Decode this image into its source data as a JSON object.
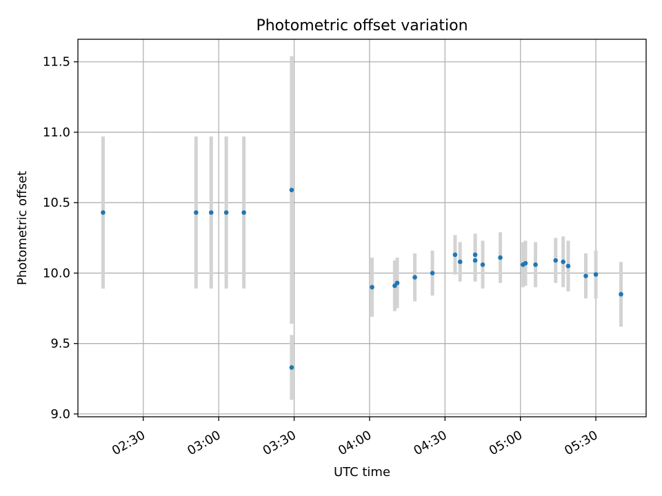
{
  "chart_data": {
    "type": "scatter",
    "title": "Photometric offset variation",
    "xlabel": "UTC time",
    "ylabel": "Photometric offset",
    "x_unit": "minutes_of_day",
    "xlim": [
      "02:04",
      "05:50"
    ],
    "ylim": [
      8.98,
      11.66
    ],
    "x_ticks": [
      "02:30",
      "03:00",
      "03:30",
      "04:00",
      "04:30",
      "05:00",
      "05:30"
    ],
    "y_ticks": [
      "9.0",
      "9.5",
      "10.0",
      "10.5",
      "11.0",
      "11.5"
    ],
    "grid": true,
    "marker_color": "#1f77b4",
    "errorbar_color": "#d3d3d3",
    "points": [
      {
        "time": "02:14",
        "y": 10.43,
        "err": 0.54
      },
      {
        "time": "02:51",
        "y": 10.43,
        "err": 0.54
      },
      {
        "time": "02:57",
        "y": 10.43,
        "err": 0.54
      },
      {
        "time": "03:03",
        "y": 10.43,
        "err": 0.54
      },
      {
        "time": "03:10",
        "y": 10.43,
        "err": 0.54
      },
      {
        "time": "03:29",
        "y": 10.59,
        "err": 0.95
      },
      {
        "time": "03:29",
        "y": 9.33,
        "err": 0.23
      },
      {
        "time": "04:01",
        "y": 9.9,
        "err": 0.21
      },
      {
        "time": "04:10",
        "y": 9.91,
        "err": 0.18
      },
      {
        "time": "04:11",
        "y": 9.93,
        "err": 0.18
      },
      {
        "time": "04:18",
        "y": 9.97,
        "err": 0.17
      },
      {
        "time": "04:25",
        "y": 10.0,
        "err": 0.16
      },
      {
        "time": "04:34",
        "y": 10.13,
        "err": 0.14
      },
      {
        "time": "04:36",
        "y": 10.08,
        "err": 0.14
      },
      {
        "time": "04:42",
        "y": 10.13,
        "err": 0.15
      },
      {
        "time": "04:42",
        "y": 10.09,
        "err": 0.15
      },
      {
        "time": "04:45",
        "y": 10.06,
        "err": 0.17
      },
      {
        "time": "04:52",
        "y": 10.11,
        "err": 0.18
      },
      {
        "time": "05:01",
        "y": 10.06,
        "err": 0.16
      },
      {
        "time": "05:02",
        "y": 10.07,
        "err": 0.16
      },
      {
        "time": "05:06",
        "y": 10.06,
        "err": 0.16
      },
      {
        "time": "05:14",
        "y": 10.09,
        "err": 0.16
      },
      {
        "time": "05:17",
        "y": 10.08,
        "err": 0.18
      },
      {
        "time": "05:19",
        "y": 10.05,
        "err": 0.18
      },
      {
        "time": "05:26",
        "y": 9.98,
        "err": 0.16
      },
      {
        "time": "05:30",
        "y": 9.99,
        "err": 0.17
      },
      {
        "time": "05:40",
        "y": 9.85,
        "err": 0.23
      }
    ]
  }
}
